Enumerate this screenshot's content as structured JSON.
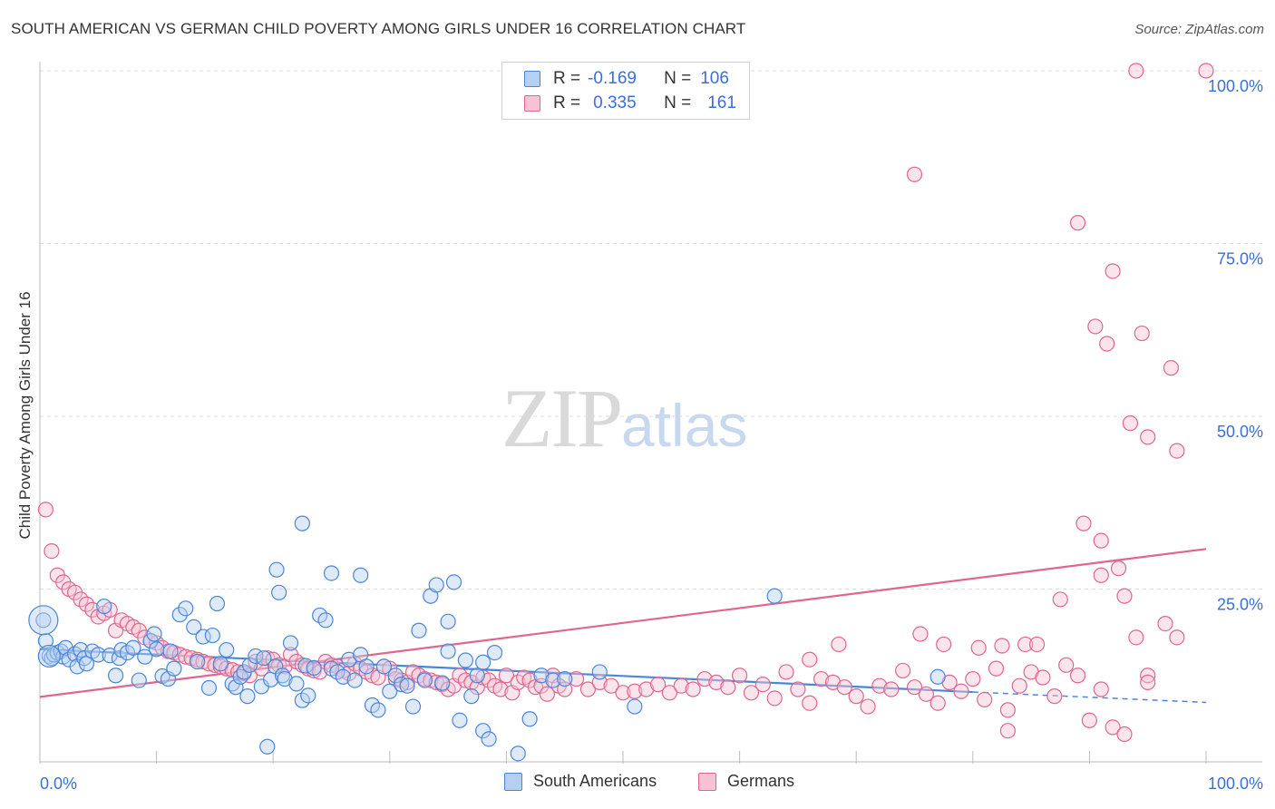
{
  "header": {
    "title": "SOUTH AMERICAN VS GERMAN CHILD POVERTY AMONG GIRLS UNDER 16 CORRELATION CHART",
    "source": "Source: ZipAtlas.com"
  },
  "watermark": {
    "zip": "ZIP",
    "atlas": "atlas"
  },
  "legend": {
    "r_label": "R =",
    "n_label": "N =",
    "rows": [
      {
        "r": "-0.169",
        "n": "106"
      },
      {
        "r": "0.335",
        "n": "161"
      }
    ]
  },
  "chart_data": {
    "type": "scatter",
    "ylabel": "Child Poverty Among Girls Under 16",
    "x_tick_labels": [
      "0.0%",
      "100.0%"
    ],
    "y_tick_labels": [
      "25.0%",
      "50.0%",
      "75.0%",
      "100.0%"
    ],
    "xlim": [
      0,
      100
    ],
    "ylim": [
      0,
      100
    ],
    "grid": true,
    "legend_position": "top-center",
    "colors": {
      "south_americans": "#4a86d8",
      "germans": "#e0668f",
      "tick_text": "#3a6fd8",
      "grid": "#dddddd"
    },
    "series": [
      {
        "name": "South Americans",
        "r": -0.169,
        "n": 106,
        "trend": {
          "x0": 0,
          "y0": 16.3,
          "x1": 80,
          "y1": 10.1,
          "dash_to_x": 100,
          "dash_to_y": 8.6
        },
        "points": [
          [
            0.3,
            20.5
          ],
          [
            0.5,
            17.5
          ],
          [
            0.8,
            15.3
          ],
          [
            1.0,
            15.0
          ],
          [
            1.2,
            15.5
          ],
          [
            1.5,
            15.8
          ],
          [
            1.8,
            16.0
          ],
          [
            2.0,
            15.2
          ],
          [
            2.2,
            16.5
          ],
          [
            2.5,
            14.8
          ],
          [
            3.0,
            15.6
          ],
          [
            3.2,
            13.8
          ],
          [
            3.5,
            16.2
          ],
          [
            3.8,
            15.0
          ],
          [
            4.0,
            14.2
          ],
          [
            4.5,
            16.0
          ],
          [
            5.0,
            15.5
          ],
          [
            5.5,
            22.5
          ],
          [
            6.0,
            15.4
          ],
          [
            6.5,
            12.5
          ],
          [
            6.8,
            15.0
          ],
          [
            7.0,
            16.2
          ],
          [
            7.5,
            15.8
          ],
          [
            8.0,
            16.5
          ],
          [
            8.5,
            11.8
          ],
          [
            9.0,
            15.2
          ],
          [
            9.5,
            17.5
          ],
          [
            9.8,
            18.5
          ],
          [
            10.0,
            16.3
          ],
          [
            10.5,
            12.4
          ],
          [
            11.0,
            12.0
          ],
          [
            11.5,
            13.5
          ],
          [
            12.0,
            21.3
          ],
          [
            12.5,
            22.2
          ],
          [
            11.2,
            16.0
          ],
          [
            13.2,
            19.5
          ],
          [
            13.5,
            14.5
          ],
          [
            14.0,
            18.1
          ],
          [
            14.5,
            10.7
          ],
          [
            14.8,
            18.3
          ],
          [
            15.2,
            22.9
          ],
          [
            15.5,
            14.2
          ],
          [
            16.0,
            16.2
          ],
          [
            16.5,
            11.3
          ],
          [
            16.8,
            10.8
          ],
          [
            17.2,
            12.3
          ],
          [
            17.5,
            13.0
          ],
          [
            17.8,
            9.5
          ],
          [
            18.0,
            14.0
          ],
          [
            18.5,
            15.3
          ],
          [
            19.0,
            10.9
          ],
          [
            19.2,
            15.0
          ],
          [
            19.5,
            2.2
          ],
          [
            19.8,
            11.9
          ],
          [
            20.2,
            13.8
          ],
          [
            20.5,
            24.5
          ],
          [
            20.8,
            12.5
          ],
          [
            21.0,
            12.0
          ],
          [
            21.5,
            17.2
          ],
          [
            22.0,
            11.3
          ],
          [
            22.5,
            8.9
          ],
          [
            22.8,
            13.9
          ],
          [
            23.0,
            9.6
          ],
          [
            23.5,
            13.6
          ],
          [
            24.0,
            21.2
          ],
          [
            24.5,
            20.5
          ],
          [
            25.0,
            13.5
          ],
          [
            25.5,
            13.0
          ],
          [
            26.0,
            12.3
          ],
          [
            26.5,
            14.8
          ],
          [
            27.0,
            11.8
          ],
          [
            27.5,
            15.5
          ],
          [
            28.0,
            13.8
          ],
          [
            28.5,
            8.2
          ],
          [
            29.0,
            7.5
          ],
          [
            29.5,
            13.8
          ],
          [
            30.0,
            10.2
          ],
          [
            30.5,
            12.5
          ],
          [
            31.0,
            11.2
          ],
          [
            31.5,
            11.0
          ],
          [
            32.0,
            8.0
          ],
          [
            32.5,
            19.0
          ],
          [
            33.0,
            11.8
          ],
          [
            33.5,
            24.0
          ],
          [
            34.0,
            25.6
          ],
          [
            34.5,
            11.4
          ],
          [
            35.0,
            20.3
          ],
          [
            35.5,
            26.0
          ],
          [
            36.0,
            6.0
          ],
          [
            36.5,
            14.7
          ],
          [
            37.0,
            9.5
          ],
          [
            37.5,
            12.5
          ],
          [
            38.0,
            4.5
          ],
          [
            38.5,
            3.3
          ],
          [
            39.0,
            15.8
          ],
          [
            41.0,
            1.2
          ],
          [
            42.0,
            6.2
          ],
          [
            43.0,
            12.5
          ],
          [
            44.0,
            11.8
          ],
          [
            45.0,
            12.0
          ],
          [
            20.3,
            27.8
          ],
          [
            22.5,
            34.5
          ],
          [
            25.0,
            27.3
          ],
          [
            27.5,
            27.0
          ],
          [
            35.0,
            16.0
          ],
          [
            38.0,
            14.4
          ],
          [
            48.0,
            13.0
          ],
          [
            51.0,
            8.0
          ],
          [
            63.0,
            24.0
          ],
          [
            77.0,
            12.3
          ]
        ]
      },
      {
        "name": "Germans",
        "r": 0.335,
        "n": 161,
        "trend": {
          "x0": 0,
          "y0": 9.4,
          "x1": 100,
          "y1": 30.8
        },
        "points": [
          [
            0.5,
            36.5
          ],
          [
            1.0,
            30.5
          ],
          [
            1.5,
            27.0
          ],
          [
            2.0,
            26.0
          ],
          [
            2.5,
            25.0
          ],
          [
            3.0,
            24.5
          ],
          [
            3.5,
            23.5
          ],
          [
            4.0,
            22.8
          ],
          [
            4.5,
            22.0
          ],
          [
            5.0,
            21.0
          ],
          [
            5.5,
            21.5
          ],
          [
            6.0,
            22.0
          ],
          [
            6.5,
            19.0
          ],
          [
            7.0,
            20.5
          ],
          [
            7.5,
            20.0
          ],
          [
            8.0,
            19.5
          ],
          [
            8.5,
            19.0
          ],
          [
            9.0,
            18.0
          ],
          [
            9.5,
            17.5
          ],
          [
            10.0,
            17.2
          ],
          [
            10.5,
            16.5
          ],
          [
            11.0,
            16.0
          ],
          [
            11.5,
            15.8
          ],
          [
            12.0,
            15.5
          ],
          [
            12.5,
            15.2
          ],
          [
            13.0,
            15.0
          ],
          [
            13.5,
            14.8
          ],
          [
            14.0,
            14.5
          ],
          [
            14.5,
            14.2
          ],
          [
            15.0,
            14.0
          ],
          [
            15.5,
            13.8
          ],
          [
            16.0,
            13.5
          ],
          [
            16.5,
            13.3
          ],
          [
            17.0,
            13.0
          ],
          [
            17.5,
            12.8
          ],
          [
            18.0,
            12.5
          ],
          [
            18.5,
            14.5
          ],
          [
            19.0,
            13.5
          ],
          [
            19.5,
            15.0
          ],
          [
            20.0,
            14.8
          ],
          [
            20.5,
            14.0
          ],
          [
            21.0,
            13.8
          ],
          [
            21.5,
            15.5
          ],
          [
            22.0,
            14.5
          ],
          [
            22.5,
            14.0
          ],
          [
            23.0,
            13.5
          ],
          [
            23.5,
            13.2
          ],
          [
            24.0,
            13.0
          ],
          [
            24.5,
            14.5
          ],
          [
            25.0,
            14.0
          ],
          [
            25.5,
            13.8
          ],
          [
            26.0,
            13.2
          ],
          [
            26.5,
            12.8
          ],
          [
            27.0,
            14.2
          ],
          [
            27.5,
            13.5
          ],
          [
            28.0,
            13.0
          ],
          [
            28.5,
            12.5
          ],
          [
            29.0,
            12.2
          ],
          [
            29.5,
            13.8
          ],
          [
            30.0,
            13.5
          ],
          [
            30.5,
            12.0
          ],
          [
            31.0,
            11.8
          ],
          [
            31.5,
            11.5
          ],
          [
            32.0,
            13.0
          ],
          [
            32.5,
            12.5
          ],
          [
            33.0,
            12.0
          ],
          [
            33.5,
            11.8
          ],
          [
            34.0,
            11.5
          ],
          [
            34.5,
            11.2
          ],
          [
            35.0,
            10.5
          ],
          [
            35.5,
            11.0
          ],
          [
            36.0,
            12.5
          ],
          [
            36.5,
            11.8
          ],
          [
            37.0,
            11.5
          ],
          [
            37.5,
            10.8
          ],
          [
            38.0,
            12.2
          ],
          [
            38.5,
            11.8
          ],
          [
            39.0,
            11.0
          ],
          [
            39.5,
            10.5
          ],
          [
            40.0,
            12.5
          ],
          [
            40.5,
            10.0
          ],
          [
            41.0,
            11.5
          ],
          [
            41.5,
            12.2
          ],
          [
            42.0,
            11.8
          ],
          [
            42.5,
            10.8
          ],
          [
            43.0,
            11.0
          ],
          [
            43.5,
            9.8
          ],
          [
            44.0,
            12.5
          ],
          [
            44.5,
            11.0
          ],
          [
            45.0,
            10.5
          ],
          [
            46.0,
            12.0
          ],
          [
            47.0,
            10.5
          ],
          [
            48.0,
            11.5
          ],
          [
            49.0,
            11.0
          ],
          [
            50.0,
            10.0
          ],
          [
            51.0,
            10.2
          ],
          [
            52.0,
            10.5
          ],
          [
            53.0,
            11.2
          ],
          [
            54.0,
            10.0
          ],
          [
            55.0,
            11.0
          ],
          [
            56.0,
            10.5
          ],
          [
            57.0,
            12.0
          ],
          [
            58.0,
            11.5
          ],
          [
            59.0,
            10.8
          ],
          [
            60.0,
            12.5
          ],
          [
            61.0,
            10.0
          ],
          [
            62.0,
            11.2
          ],
          [
            63.0,
            9.2
          ],
          [
            64.0,
            13.0
          ],
          [
            65.0,
            10.5
          ],
          [
            66.0,
            8.5
          ],
          [
            67.0,
            12.0
          ],
          [
            68.0,
            11.5
          ],
          [
            69.0,
            10.8
          ],
          [
            70.0,
            9.5
          ],
          [
            71.0,
            8.0
          ],
          [
            72.0,
            11.0
          ],
          [
            73.0,
            10.5
          ],
          [
            74.0,
            13.2
          ],
          [
            75.0,
            10.8
          ],
          [
            76.0,
            9.8
          ],
          [
            77.0,
            8.5
          ],
          [
            78.0,
            11.5
          ],
          [
            79.0,
            10.2
          ],
          [
            80.0,
            12.0
          ],
          [
            81.0,
            9.0
          ],
          [
            82.0,
            13.5
          ],
          [
            83.0,
            7.5
          ],
          [
            84.0,
            11.0
          ],
          [
            85.0,
            13.0
          ],
          [
            86.0,
            12.2
          ],
          [
            87.0,
            9.5
          ],
          [
            88.0,
            14.0
          ],
          [
            89.0,
            12.5
          ],
          [
            90.0,
            6.0
          ],
          [
            91.0,
            10.5
          ],
          [
            92.0,
            5.0
          ],
          [
            93.0,
            4.0
          ],
          [
            66.0,
            14.8
          ],
          [
            68.5,
            17.0
          ],
          [
            75.5,
            18.5
          ],
          [
            77.5,
            17.0
          ],
          [
            80.5,
            16.5
          ],
          [
            82.5,
            16.8
          ],
          [
            84.5,
            17.0
          ],
          [
            85.5,
            17.0
          ],
          [
            87.5,
            23.5
          ],
          [
            89.5,
            34.5
          ],
          [
            91.0,
            32.0
          ],
          [
            92.5,
            28.0
          ],
          [
            94.0,
            18.0
          ],
          [
            95.0,
            12.5
          ],
          [
            96.5,
            20.0
          ],
          [
            97.5,
            18.0
          ],
          [
            90.5,
            63.0
          ],
          [
            91.5,
            60.5
          ],
          [
            92.0,
            71.0
          ],
          [
            93.5,
            49.0
          ],
          [
            94.5,
            62.0
          ],
          [
            95.0,
            47.0
          ],
          [
            97.0,
            57.0
          ],
          [
            97.5,
            45.0
          ],
          [
            75.0,
            85.0
          ],
          [
            89.0,
            78.0
          ],
          [
            94.0,
            100.0
          ],
          [
            100.0,
            100.0
          ],
          [
            91.0,
            27.0
          ],
          [
            93.0,
            24.0
          ],
          [
            83.0,
            4.5
          ],
          [
            95.0,
            11.5
          ]
        ]
      }
    ]
  },
  "bottom_legend": [
    "South Americans",
    "Germans"
  ]
}
